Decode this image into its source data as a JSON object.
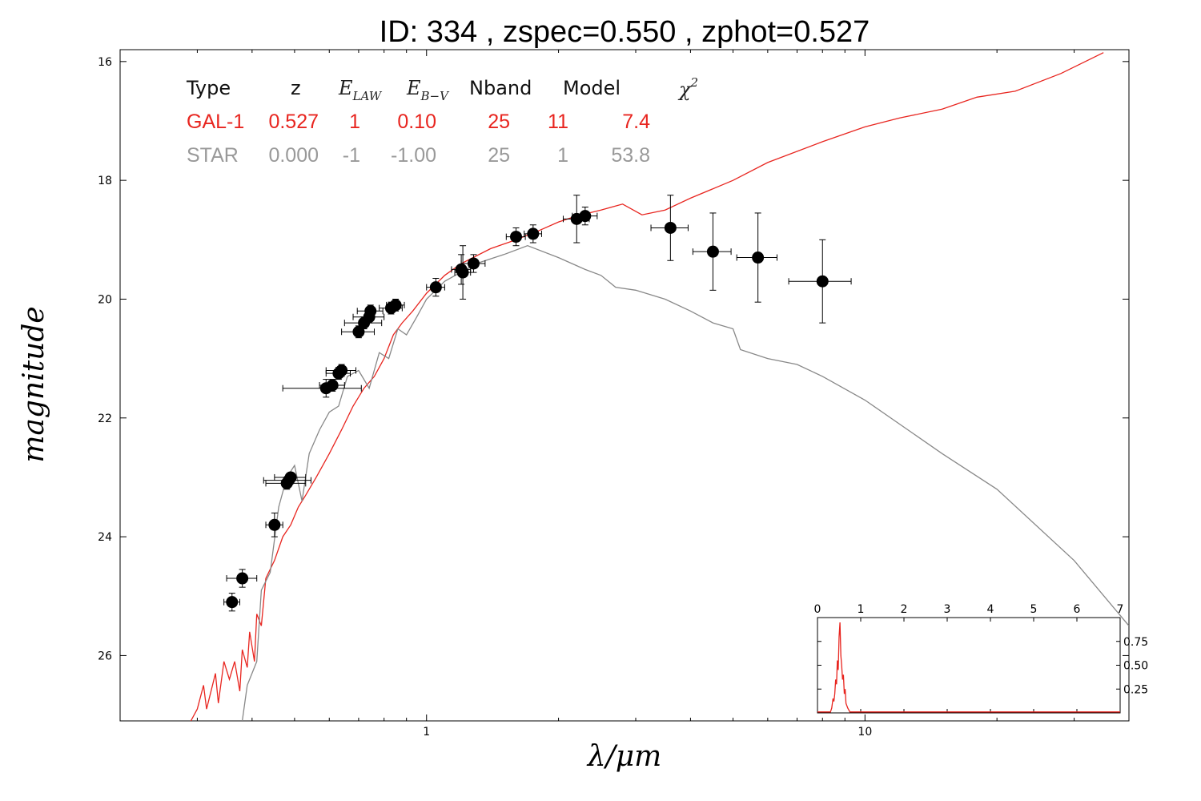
{
  "chart_data": {
    "type": "scatter",
    "title": "ID:  334   , zspec=0.550 , zphot=0.527",
    "xlabel": "λ/μm",
    "ylabel": "magnitude",
    "xscale": "log",
    "xlim": [
      0.2,
      40
    ],
    "ylim": [
      27.1,
      15.8
    ],
    "yaxis_inverted": true,
    "xticks": [
      {
        "value": 1,
        "label": "1"
      },
      {
        "value": 10,
        "label": "10"
      }
    ],
    "yticks": [
      {
        "value": 16,
        "label": "16"
      },
      {
        "value": 18,
        "label": "18"
      },
      {
        "value": 20,
        "label": "20"
      },
      {
        "value": 22,
        "label": "22"
      },
      {
        "value": 24,
        "label": "24"
      },
      {
        "value": 26,
        "label": "26"
      }
    ],
    "table": {
      "headers": [
        "Type",
        "z",
        "E_LAW",
        "E_B-V",
        "Nband",
        "Model",
        "χ²"
      ],
      "rows": [
        {
          "cells": [
            "GAL-1",
            "0.527",
            "1",
            "0.10",
            "25",
            "11",
            "7.4"
          ],
          "color": "#e8251f"
        },
        {
          "cells": [
            "STAR",
            "0.000",
            "-1",
            "-1.00",
            "25",
            "1",
            "53.8"
          ],
          "color": "#999999"
        }
      ]
    },
    "series": [
      {
        "name": "GAL-1",
        "kind": "line",
        "color": "#e8251f",
        "points": [
          [
            0.29,
            27.1
          ],
          [
            0.3,
            26.9
          ],
          [
            0.31,
            26.5
          ],
          [
            0.315,
            26.9
          ],
          [
            0.33,
            26.3
          ],
          [
            0.335,
            26.8
          ],
          [
            0.345,
            26.1
          ],
          [
            0.355,
            26.4
          ],
          [
            0.365,
            26.1
          ],
          [
            0.375,
            26.6
          ],
          [
            0.38,
            25.9
          ],
          [
            0.39,
            26.2
          ],
          [
            0.395,
            25.6
          ],
          [
            0.405,
            26.1
          ],
          [
            0.41,
            25.3
          ],
          [
            0.42,
            25.5
          ],
          [
            0.43,
            24.7
          ],
          [
            0.45,
            24.4
          ],
          [
            0.47,
            24.0
          ],
          [
            0.49,
            23.8
          ],
          [
            0.51,
            23.5
          ],
          [
            0.53,
            23.3
          ],
          [
            0.56,
            23.0
          ],
          [
            0.6,
            22.6
          ],
          [
            0.64,
            22.2
          ],
          [
            0.68,
            21.8
          ],
          [
            0.72,
            21.5
          ],
          [
            0.76,
            21.3
          ],
          [
            0.8,
            21.0
          ],
          [
            0.84,
            20.6
          ],
          [
            0.88,
            20.4
          ],
          [
            0.93,
            20.2
          ],
          [
            1.0,
            19.9
          ],
          [
            1.1,
            19.6
          ],
          [
            1.2,
            19.4
          ],
          [
            1.4,
            19.15
          ],
          [
            1.6,
            19.0
          ],
          [
            1.8,
            18.85
          ],
          [
            2.0,
            18.7
          ],
          [
            2.2,
            18.6
          ],
          [
            2.5,
            18.5
          ],
          [
            2.8,
            18.4
          ],
          [
            3.1,
            18.58
          ],
          [
            3.5,
            18.5
          ],
          [
            4,
            18.3
          ],
          [
            5,
            18.0
          ],
          [
            6,
            17.7
          ],
          [
            8,
            17.35
          ],
          [
            10,
            17.1
          ],
          [
            12,
            16.95
          ],
          [
            15,
            16.8
          ],
          [
            18,
            16.6
          ],
          [
            22,
            16.5
          ],
          [
            28,
            16.2
          ],
          [
            35,
            15.85
          ]
        ]
      },
      {
        "name": "STAR",
        "kind": "line",
        "color": "#888888",
        "points": [
          [
            0.38,
            27.1
          ],
          [
            0.39,
            26.5
          ],
          [
            0.41,
            26.1
          ],
          [
            0.42,
            24.9
          ],
          [
            0.44,
            24.6
          ],
          [
            0.46,
            23.5
          ],
          [
            0.48,
            23.0
          ],
          [
            0.5,
            22.8
          ],
          [
            0.52,
            23.4
          ],
          [
            0.54,
            22.6
          ],
          [
            0.57,
            22.2
          ],
          [
            0.6,
            21.9
          ],
          [
            0.63,
            21.8
          ],
          [
            0.66,
            21.3
          ],
          [
            0.7,
            21.2
          ],
          [
            0.74,
            21.5
          ],
          [
            0.78,
            20.9
          ],
          [
            0.82,
            21.0
          ],
          [
            0.86,
            20.5
          ],
          [
            0.9,
            20.6
          ],
          [
            0.95,
            20.3
          ],
          [
            1.0,
            20.0
          ],
          [
            1.1,
            19.7
          ],
          [
            1.3,
            19.4
          ],
          [
            1.5,
            19.25
          ],
          [
            1.7,
            19.1
          ],
          [
            2.0,
            19.3
          ],
          [
            2.3,
            19.5
          ],
          [
            2.5,
            19.6
          ],
          [
            2.7,
            19.8
          ],
          [
            3.0,
            19.85
          ],
          [
            3.5,
            20.0
          ],
          [
            4,
            20.2
          ],
          [
            4.5,
            20.4
          ],
          [
            5.0,
            20.5
          ],
          [
            5.2,
            20.85
          ],
          [
            6,
            21.0
          ],
          [
            7,
            21.1
          ],
          [
            8,
            21.3
          ],
          [
            10,
            21.7
          ],
          [
            15,
            22.6
          ],
          [
            20,
            23.2
          ],
          [
            30,
            24.4
          ],
          [
            40,
            25.5
          ]
        ]
      },
      {
        "name": "photometry",
        "kind": "points",
        "color": "#000000",
        "points": [
          {
            "x": 0.36,
            "y": 25.1,
            "xerr": 0.015,
            "yerr": 0.15
          },
          {
            "x": 0.38,
            "y": 24.7,
            "xerr": 0.03,
            "yerr": 0.15
          },
          {
            "x": 0.45,
            "y": 23.8,
            "xerr": 0.02,
            "yerr": 0.2
          },
          {
            "x": 0.48,
            "y": 23.1,
            "xerr": 0.05,
            "yerr": 0.1
          },
          {
            "x": 0.485,
            "y": 23.05,
            "xerr": 0.06,
            "yerr": 0.08
          },
          {
            "x": 0.49,
            "y": 23.0,
            "xerr": 0.04,
            "yerr": 0.08
          },
          {
            "x": 0.59,
            "y": 21.5,
            "xerr": 0.12,
            "yerr": 0.15
          },
          {
            "x": 0.61,
            "y": 21.45,
            "xerr": 0.04,
            "yerr": 0.1
          },
          {
            "x": 0.63,
            "y": 21.25,
            "xerr": 0.04,
            "yerr": 0.1
          },
          {
            "x": 0.64,
            "y": 21.2,
            "xerr": 0.05,
            "yerr": 0.1
          },
          {
            "x": 0.7,
            "y": 20.55,
            "xerr": 0.06,
            "yerr": 0.1
          },
          {
            "x": 0.72,
            "y": 20.4,
            "xerr": 0.07,
            "yerr": 0.1
          },
          {
            "x": 0.74,
            "y": 20.3,
            "xerr": 0.06,
            "yerr": 0.1
          },
          {
            "x": 0.745,
            "y": 20.2,
            "xerr": 0.05,
            "yerr": 0.1
          },
          {
            "x": 0.83,
            "y": 20.15,
            "xerr": 0.05,
            "yerr": 0.1
          },
          {
            "x": 0.85,
            "y": 20.1,
            "xerr": 0.04,
            "yerr": 0.1
          },
          {
            "x": 1.05,
            "y": 19.8,
            "xerr": 0.05,
            "yerr": 0.15
          },
          {
            "x": 1.2,
            "y": 19.5,
            "xerr": 0.06,
            "yerr": 0.25
          },
          {
            "x": 1.21,
            "y": 19.55,
            "xerr": 0.05,
            "yerr": 0.45
          },
          {
            "x": 1.28,
            "y": 19.4,
            "xerr": 0.08,
            "yerr": 0.15
          },
          {
            "x": 1.6,
            "y": 18.95,
            "xerr": 0.08,
            "yerr": 0.15
          },
          {
            "x": 1.75,
            "y": 18.9,
            "xerr": 0.08,
            "yerr": 0.15
          },
          {
            "x": 2.2,
            "y": 18.65,
            "xerr": 0.15,
            "yerr": 0.4
          },
          {
            "x": 2.3,
            "y": 18.6,
            "xerr": 0.15,
            "yerr": 0.15
          },
          {
            "x": 3.6,
            "y": 18.8,
            "xerr": 0.35,
            "yerr": 0.55
          },
          {
            "x": 4.5,
            "y": 19.2,
            "xerr": 0.45,
            "yerr": 0.65
          },
          {
            "x": 5.7,
            "y": 19.3,
            "xerr": 0.6,
            "yerr": 0.75
          },
          {
            "x": 8.0,
            "y": 19.7,
            "xerr": 1.3,
            "yerr": 0.7
          }
        ]
      }
    ],
    "inset": {
      "type": "line",
      "color": "#e8251f",
      "xlim": [
        0,
        7
      ],
      "ylim": [
        0,
        1.0
      ],
      "xticks": [
        "0",
        "1",
        "2",
        "3",
        "4",
        "5",
        "6",
        "7"
      ],
      "yticks": [
        {
          "value": 0.25,
          "label": "0.25"
        },
        {
          "value": 0.5,
          "label": "0.50"
        },
        {
          "value": 0.75,
          "label": "0.75"
        }
      ],
      "points": [
        [
          0,
          0.01
        ],
        [
          0.3,
          0.01
        ],
        [
          0.33,
          0.05
        ],
        [
          0.36,
          0.15
        ],
        [
          0.38,
          0.12
        ],
        [
          0.4,
          0.2
        ],
        [
          0.42,
          0.35
        ],
        [
          0.44,
          0.3
        ],
        [
          0.46,
          0.55
        ],
        [
          0.48,
          0.45
        ],
        [
          0.5,
          0.8
        ],
        [
          0.52,
          0.95
        ],
        [
          0.54,
          0.6
        ],
        [
          0.56,
          0.5
        ],
        [
          0.58,
          0.35
        ],
        [
          0.6,
          0.4
        ],
        [
          0.62,
          0.2
        ],
        [
          0.64,
          0.25
        ],
        [
          0.66,
          0.1
        ],
        [
          0.7,
          0.05
        ],
        [
          0.75,
          0.01
        ],
        [
          7,
          0.01
        ]
      ]
    }
  }
}
